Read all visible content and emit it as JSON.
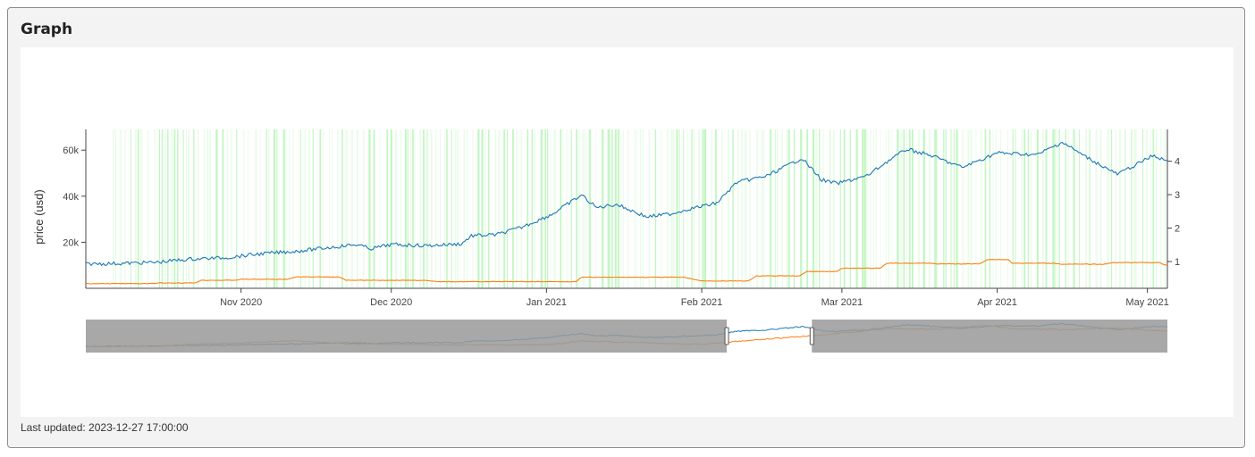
{
  "card": {
    "title": "Graph",
    "last_updated": "Last updated: 2023-12-27 17:00:00"
  },
  "chart_data": {
    "type": "line",
    "ylabel": "price (usd)",
    "xlim": [
      "2020-10-01",
      "2021-05-05"
    ],
    "x_ticks": [
      {
        "date": "2020-11-01",
        "label": "Nov 2020"
      },
      {
        "date": "2020-12-01",
        "label": "Dec 2020"
      },
      {
        "date": "2021-01-01",
        "label": "Jan 2021"
      },
      {
        "date": "2021-02-01",
        "label": "Feb 2021"
      },
      {
        "date": "2021-03-01",
        "label": "Mar 2021"
      },
      {
        "date": "2021-04-01",
        "label": "Apr 2021"
      },
      {
        "date": "2021-05-01",
        "label": "May 2021"
      }
    ],
    "y_left": {
      "range": [
        0,
        69000
      ],
      "ticks": [
        20000,
        40000,
        60000
      ],
      "tick_labels": [
        "20k",
        "40k",
        "60k"
      ]
    },
    "y_right": {
      "range": [
        0.2,
        4.95
      ],
      "ticks": [
        1,
        2,
        3,
        4
      ],
      "tick_labels": [
        "1",
        "2",
        "3",
        "4"
      ]
    },
    "series": [
      {
        "axis": "left",
        "color": "#1f77b4",
        "points": [
          [
            "2020-10-01",
            10600
          ],
          [
            "2020-10-08",
            10800
          ],
          [
            "2020-10-15",
            11300
          ],
          [
            "2020-10-22",
            12700
          ],
          [
            "2020-10-29",
            13300
          ],
          [
            "2020-11-05",
            15000
          ],
          [
            "2020-11-12",
            16100
          ],
          [
            "2020-11-19",
            17800
          ],
          [
            "2020-11-24",
            19000
          ],
          [
            "2020-11-27",
            17200
          ],
          [
            "2020-12-01",
            19000
          ],
          [
            "2020-12-08",
            18500
          ],
          [
            "2020-12-15",
            19300
          ],
          [
            "2020-12-17",
            22800
          ],
          [
            "2020-12-22",
            23300
          ],
          [
            "2020-12-27",
            26500
          ],
          [
            "2021-01-02",
            32000
          ],
          [
            "2021-01-08",
            40500
          ],
          [
            "2021-01-11",
            35000
          ],
          [
            "2021-01-15",
            36500
          ],
          [
            "2021-01-21",
            31000
          ],
          [
            "2021-01-26",
            32400
          ],
          [
            "2021-01-29",
            34200
          ],
          [
            "2021-02-04",
            37000
          ],
          [
            "2021-02-08",
            46000
          ],
          [
            "2021-02-14",
            48800
          ],
          [
            "2021-02-21",
            56500
          ],
          [
            "2021-02-25",
            47000
          ],
          [
            "2021-02-28",
            45500
          ],
          [
            "2021-03-06",
            48800
          ],
          [
            "2021-03-10",
            55000
          ],
          [
            "2021-03-14",
            60500
          ],
          [
            "2021-03-19",
            57500
          ],
          [
            "2021-03-25",
            52500
          ],
          [
            "2021-04-01",
            58800
          ],
          [
            "2021-04-09",
            58000
          ],
          [
            "2021-04-14",
            63500
          ],
          [
            "2021-04-18",
            58000
          ],
          [
            "2021-04-25",
            49500
          ],
          [
            "2021-04-29",
            54000
          ],
          [
            "2021-05-02",
            57500
          ],
          [
            "2021-05-05",
            55500
          ]
        ]
      },
      {
        "axis": "right",
        "color": "#ff7f0e",
        "points": [
          [
            "2020-10-01",
            0.34
          ],
          [
            "2020-10-16",
            0.36
          ],
          [
            "2020-10-24",
            0.44
          ],
          [
            "2020-11-01",
            0.47
          ],
          [
            "2020-11-12",
            0.54
          ],
          [
            "2020-11-22",
            0.44
          ],
          [
            "2020-12-10",
            0.4
          ],
          [
            "2021-01-01",
            0.4
          ],
          [
            "2021-01-08",
            0.53
          ],
          [
            "2021-02-01",
            0.42
          ],
          [
            "2021-02-12",
            0.57
          ],
          [
            "2021-02-22",
            0.7
          ],
          [
            "2021-03-01",
            0.8
          ],
          [
            "2021-03-10",
            0.95
          ],
          [
            "2021-03-20",
            0.93
          ],
          [
            "2021-03-30",
            1.06
          ],
          [
            "2021-04-04",
            0.95
          ],
          [
            "2021-04-14",
            0.92
          ],
          [
            "2021-04-24",
            0.97
          ],
          [
            "2021-05-05",
            0.87
          ]
        ]
      }
    ],
    "shading_color": "#90ee90",
    "rangeslider": {
      "selected_range": [
        "2021-02-06",
        "2021-02-23"
      ],
      "outside_shade_color": "#999999"
    }
  }
}
